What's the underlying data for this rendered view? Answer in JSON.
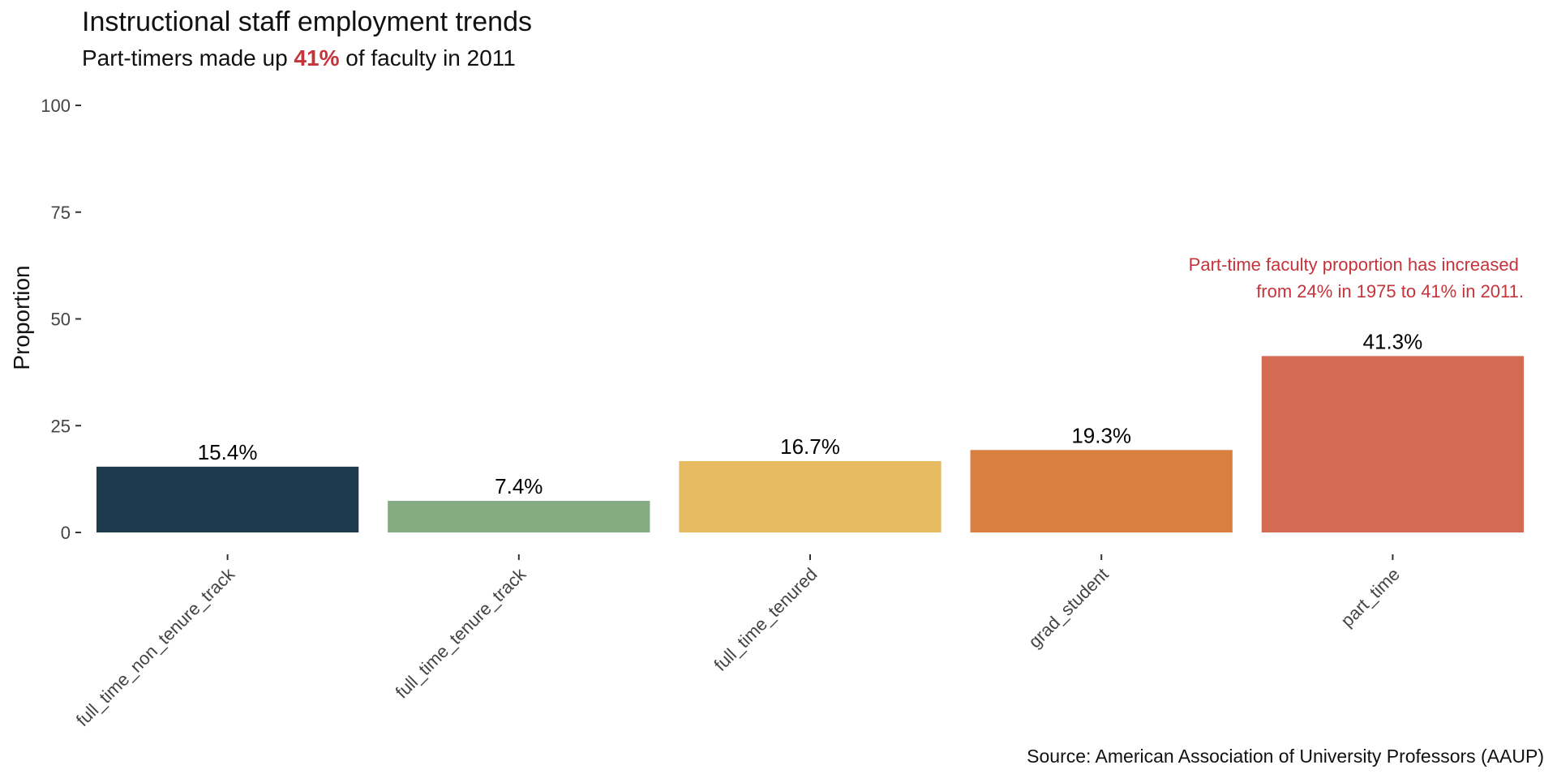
{
  "chart_data": {
    "type": "bar",
    "title": "Instructional staff employment trends",
    "subtitle": {
      "before": "Part-timers made up ",
      "highlight": "41%",
      "after": " of faculty in 2011"
    },
    "ylabel": "Proportion",
    "xlabel": "",
    "ylim": [
      0,
      100
    ],
    "yticks": [
      0,
      25,
      50,
      75,
      100
    ],
    "categories": [
      "full_time_non_tenure_track",
      "full_time_tenure_track",
      "full_time_tenured",
      "grad_student",
      "part_time"
    ],
    "values": [
      15.4,
      7.4,
      16.7,
      19.3,
      41.3
    ],
    "value_labels": [
      "15.4%",
      "7.4%",
      "16.7%",
      "19.3%",
      "41.3%"
    ],
    "colors": [
      "#1e3b4e",
      "#84ab82",
      "#e7bb62",
      "#d98040",
      "#d56a53"
    ],
    "annotation": {
      "lines": [
        "Part-time faculty proportion has increased",
        "from 24% in 1975 to 41% in 2011."
      ],
      "color": "#c4343a"
    },
    "highlight_color": "#c4343a",
    "caption": "Source: American Association of University Professors (AAUP)",
    "grid": false,
    "legend": "none"
  }
}
